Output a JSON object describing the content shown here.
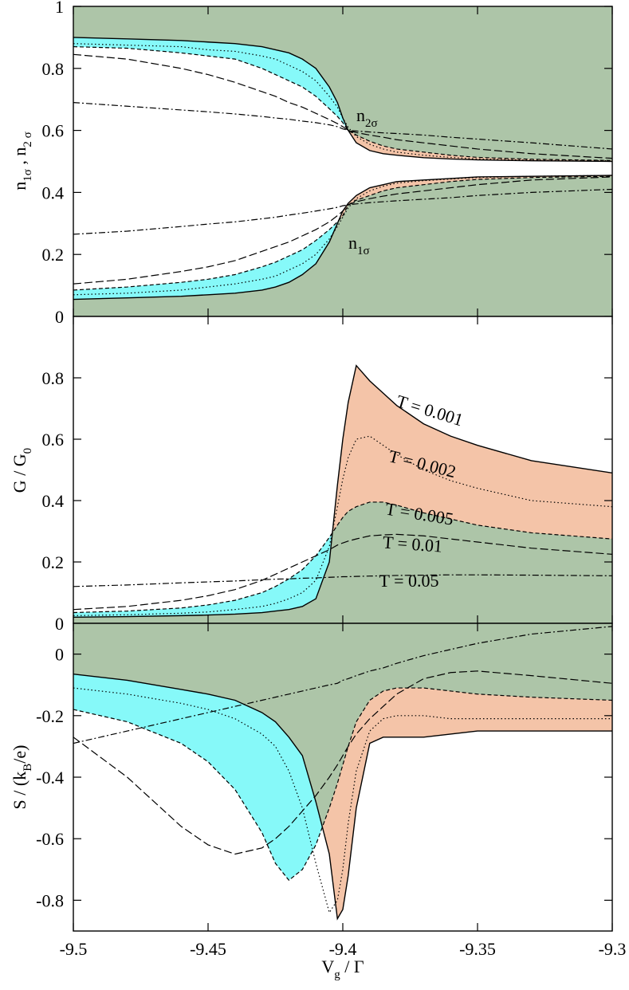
{
  "chart_data": [
    {
      "type": "line",
      "ylabel": [
        "n",
        "1σ",
        " , n",
        "2 σ"
      ],
      "annotations": [
        [
          "n",
          "2σ"
        ],
        [
          "n",
          "1σ"
        ]
      ],
      "x": [
        -9.5,
        -9.48,
        -9.46,
        -9.45,
        -9.44,
        -9.43,
        -9.425,
        -9.42,
        -9.415,
        -9.41,
        -9.405,
        -9.402,
        -9.4,
        -9.398,
        -9.395,
        -9.39,
        -9.385,
        -9.38,
        -9.37,
        -9.36,
        -9.35,
        -9.33,
        -9.3
      ],
      "xlim": [
        -9.5,
        -9.3
      ],
      "xticks": [
        -9.5,
        -9.45,
        -9.4,
        -9.35,
        -9.3
      ],
      "ylim": [
        0,
        1
      ],
      "yticks": [
        0,
        0.2,
        0.4,
        0.6,
        0.8,
        1
      ],
      "series": [
        {
          "color": "#000000",
          "dash": "solid",
          "values": [
            0.9,
            0.895,
            0.89,
            0.885,
            0.88,
            0.87,
            0.86,
            0.85,
            0.83,
            0.8,
            0.74,
            0.69,
            0.64,
            0.6,
            0.56,
            0.535,
            0.525,
            0.52,
            0.512,
            0.508,
            0.505,
            0.502,
            0.5
          ]
        },
        {
          "color": "#000000",
          "dash": "dotted",
          "values": [
            0.88,
            0.875,
            0.87,
            0.86,
            0.855,
            0.84,
            0.83,
            0.81,
            0.79,
            0.76,
            0.71,
            0.675,
            0.64,
            0.61,
            0.58,
            0.555,
            0.54,
            0.53,
            0.52,
            0.513,
            0.508,
            0.504,
            0.502
          ]
        },
        {
          "color": "#000000",
          "dash": "short-dash",
          "values": [
            0.87,
            0.865,
            0.85,
            0.84,
            0.83,
            0.8,
            0.78,
            0.76,
            0.74,
            0.71,
            0.67,
            0.645,
            0.625,
            0.6,
            0.585,
            0.565,
            0.55,
            0.54,
            0.53,
            0.52,
            0.513,
            0.507,
            0.503
          ]
        },
        {
          "color": "#000000",
          "dash": "long-dash",
          "values": [
            0.845,
            0.83,
            0.8,
            0.78,
            0.755,
            0.725,
            0.71,
            0.69,
            0.675,
            0.655,
            0.635,
            0.622,
            0.612,
            0.6,
            0.593,
            0.585,
            0.578,
            0.57,
            0.56,
            0.55,
            0.54,
            0.525,
            0.51
          ]
        },
        {
          "color": "#000000",
          "dash": "dash-dot",
          "values": [
            0.69,
            0.678,
            0.666,
            0.66,
            0.653,
            0.645,
            0.64,
            0.636,
            0.63,
            0.625,
            0.618,
            0.612,
            0.605,
            0.6,
            0.598,
            0.595,
            0.592,
            0.59,
            0.585,
            0.578,
            0.572,
            0.56,
            0.54
          ]
        },
        {
          "color": "#000000",
          "dash": "solid",
          "values": [
            0.055,
            0.06,
            0.065,
            0.07,
            0.075,
            0.085,
            0.095,
            0.11,
            0.135,
            0.17,
            0.24,
            0.3,
            0.34,
            0.365,
            0.39,
            0.415,
            0.425,
            0.435,
            0.44,
            0.445,
            0.45,
            0.452,
            0.455
          ]
        },
        {
          "color": "#000000",
          "dash": "dotted",
          "values": [
            0.07,
            0.075,
            0.085,
            0.095,
            0.105,
            0.12,
            0.13,
            0.15,
            0.17,
            0.2,
            0.25,
            0.29,
            0.32,
            0.35,
            0.38,
            0.405,
            0.42,
            0.43,
            0.438,
            0.443,
            0.448,
            0.452,
            0.455
          ]
        },
        {
          "color": "#000000",
          "dash": "short-dash",
          "values": [
            0.085,
            0.095,
            0.11,
            0.12,
            0.135,
            0.16,
            0.175,
            0.195,
            0.215,
            0.245,
            0.28,
            0.305,
            0.325,
            0.36,
            0.375,
            0.39,
            0.405,
            0.415,
            0.425,
            0.435,
            0.442,
            0.448,
            0.452
          ]
        },
        {
          "color": "#000000",
          "dash": "long-dash",
          "values": [
            0.105,
            0.12,
            0.145,
            0.16,
            0.18,
            0.21,
            0.225,
            0.24,
            0.26,
            0.28,
            0.305,
            0.325,
            0.34,
            0.36,
            0.37,
            0.38,
            0.388,
            0.395,
            0.405,
            0.415,
            0.425,
            0.44,
            0.45
          ]
        },
        {
          "color": "#000000",
          "dash": "dash-dot",
          "values": [
            0.265,
            0.275,
            0.29,
            0.298,
            0.305,
            0.315,
            0.32,
            0.327,
            0.333,
            0.34,
            0.347,
            0.352,
            0.357,
            0.36,
            0.363,
            0.367,
            0.37,
            0.373,
            0.378,
            0.383,
            0.39,
            0.4,
            0.41
          ]
        }
      ]
    },
    {
      "type": "line",
      "ylabel": [
        "G / G",
        "0"
      ],
      "x": [
        -9.5,
        -9.48,
        -9.46,
        -9.45,
        -9.44,
        -9.43,
        -9.425,
        -9.42,
        -9.415,
        -9.41,
        -9.405,
        -9.402,
        -9.4,
        -9.398,
        -9.395,
        -9.39,
        -9.385,
        -9.38,
        -9.37,
        -9.36,
        -9.35,
        -9.33,
        -9.3
      ],
      "xlim": [
        -9.5,
        -9.3
      ],
      "xticks": [
        -9.5,
        -9.45,
        -9.4,
        -9.35,
        -9.3
      ],
      "ylim": [
        0,
        1
      ],
      "yticks": [
        0,
        0.2,
        0.4,
        0.6,
        0.8
      ],
      "series": [
        {
          "name": "T = 0.001",
          "color": "#000000",
          "dash": "solid",
          "values": [
            0.02,
            0.022,
            0.025,
            0.027,
            0.03,
            0.035,
            0.04,
            0.045,
            0.055,
            0.08,
            0.2,
            0.45,
            0.6,
            0.72,
            0.84,
            0.79,
            0.75,
            0.71,
            0.65,
            0.61,
            0.58,
            0.53,
            0.49
          ]
        },
        {
          "name": "T = 0.002",
          "color": "#000000",
          "dash": "dotted",
          "values": [
            0.025,
            0.028,
            0.033,
            0.037,
            0.045,
            0.055,
            0.065,
            0.08,
            0.1,
            0.14,
            0.25,
            0.38,
            0.47,
            0.54,
            0.6,
            0.61,
            0.58,
            0.55,
            0.5,
            0.465,
            0.44,
            0.4,
            0.38
          ]
        },
        {
          "name": "T = 0.005",
          "color": "#000000",
          "dash": "short-dash",
          "values": [
            0.035,
            0.04,
            0.05,
            0.06,
            0.075,
            0.1,
            0.12,
            0.145,
            0.175,
            0.22,
            0.28,
            0.32,
            0.345,
            0.365,
            0.38,
            0.395,
            0.395,
            0.385,
            0.36,
            0.34,
            0.32,
            0.295,
            0.275
          ]
        },
        {
          "name": "T = 0.01",
          "color": "#000000",
          "dash": "long-dash",
          "values": [
            0.045,
            0.055,
            0.075,
            0.09,
            0.11,
            0.14,
            0.16,
            0.18,
            0.2,
            0.22,
            0.24,
            0.255,
            0.262,
            0.268,
            0.275,
            0.285,
            0.288,
            0.29,
            0.285,
            0.275,
            0.265,
            0.245,
            0.225
          ]
        },
        {
          "name": "T = 0.05",
          "color": "#000000",
          "dash": "dash-dot",
          "values": [
            0.12,
            0.125,
            0.132,
            0.135,
            0.138,
            0.142,
            0.144,
            0.145,
            0.147,
            0.148,
            0.15,
            0.151,
            0.152,
            0.152,
            0.153,
            0.154,
            0.155,
            0.156,
            0.157,
            0.158,
            0.158,
            0.157,
            0.155
          ]
        }
      ]
    },
    {
      "type": "line",
      "ylabel": [
        "S / (k",
        "B",
        "/e)"
      ],
      "xlabel": [
        "V",
        "g",
        " / Γ"
      ],
      "x": [
        -9.5,
        -9.48,
        -9.46,
        -9.45,
        -9.44,
        -9.43,
        -9.425,
        -9.42,
        -9.415,
        -9.41,
        -9.405,
        -9.402,
        -9.4,
        -9.398,
        -9.395,
        -9.39,
        -9.385,
        -9.38,
        -9.37,
        -9.36,
        -9.35,
        -9.33,
        -9.3
      ],
      "xlim": [
        -9.5,
        -9.3
      ],
      "xticks": [
        -9.5,
        -9.45,
        -9.4,
        -9.35,
        -9.3
      ],
      "ylim": [
        -0.9,
        0.1
      ],
      "yticks": [
        -0.8,
        -0.6,
        -0.4,
        -0.2,
        0
      ],
      "series": [
        {
          "color": "#000000",
          "dash": "solid",
          "values": [
            -0.065,
            -0.085,
            -0.115,
            -0.13,
            -0.15,
            -0.19,
            -0.22,
            -0.27,
            -0.33,
            -0.48,
            -0.65,
            -0.86,
            -0.83,
            -0.72,
            -0.5,
            -0.29,
            -0.27,
            -0.27,
            -0.27,
            -0.26,
            -0.25,
            -0.25,
            -0.25
          ]
        },
        {
          "color": "#000000",
          "dash": "dotted",
          "values": [
            -0.11,
            -0.13,
            -0.16,
            -0.18,
            -0.21,
            -0.26,
            -0.3,
            -0.38,
            -0.5,
            -0.68,
            -0.84,
            -0.8,
            -0.7,
            -0.55,
            -0.38,
            -0.25,
            -0.21,
            -0.2,
            -0.2,
            -0.21,
            -0.21,
            -0.21,
            -0.21
          ]
        },
        {
          "color": "#000000",
          "dash": "short-dash",
          "values": [
            -0.18,
            -0.22,
            -0.29,
            -0.35,
            -0.44,
            -0.58,
            -0.68,
            -0.735,
            -0.7,
            -0.62,
            -0.5,
            -0.42,
            -0.36,
            -0.3,
            -0.22,
            -0.15,
            -0.12,
            -0.11,
            -0.11,
            -0.12,
            -0.13,
            -0.14,
            -0.15
          ]
        },
        {
          "color": "#000000",
          "dash": "long-dash",
          "values": [
            -0.27,
            -0.4,
            -0.56,
            -0.62,
            -0.65,
            -0.63,
            -0.6,
            -0.56,
            -0.51,
            -0.46,
            -0.4,
            -0.36,
            -0.33,
            -0.3,
            -0.26,
            -0.21,
            -0.17,
            -0.13,
            -0.08,
            -0.06,
            -0.055,
            -0.07,
            -0.095
          ]
        },
        {
          "color": "#000000",
          "dash": "dash-dot",
          "values": [
            -0.29,
            -0.25,
            -0.21,
            -0.19,
            -0.17,
            -0.15,
            -0.14,
            -0.13,
            -0.12,
            -0.11,
            -0.1,
            -0.095,
            -0.085,
            -0.08,
            -0.07,
            -0.055,
            -0.045,
            -0.03,
            -0.005,
            0.015,
            0.035,
            0.065,
            0.09
          ]
        }
      ]
    }
  ]
}
